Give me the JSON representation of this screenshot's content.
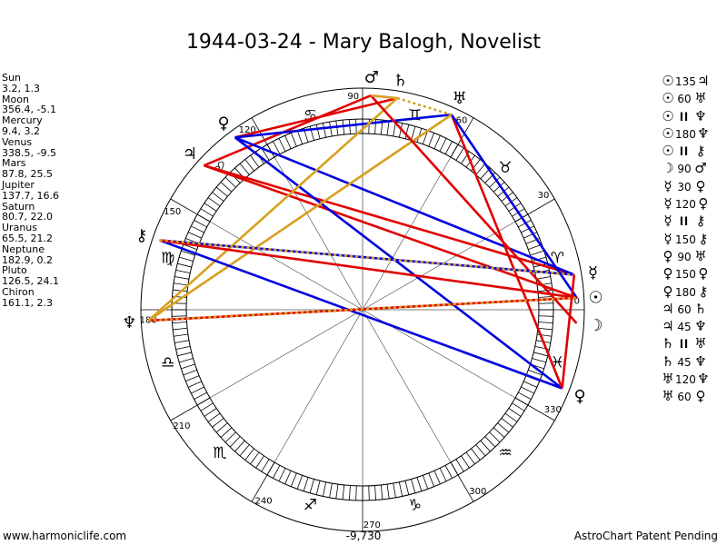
{
  "title": "1944-03-24 - Mary Balogh, Novelist",
  "planets": [
    {
      "name": "Sun",
      "glyph": "☉",
      "lon": 3.2,
      "lat": 1.3,
      "coords": "3.2, 1.3"
    },
    {
      "name": "Moon",
      "glyph": "☽",
      "lon": 356.4,
      "lat": -5.1,
      "coords": "356.4, -5.1"
    },
    {
      "name": "Mercury",
      "glyph": "☿",
      "lon": 9.4,
      "lat": 3.2,
      "coords": "9.4, 3.2"
    },
    {
      "name": "Venus",
      "glyph": "♀",
      "lon": 338.5,
      "lat": -9.5,
      "coords": "338.5, -9.5"
    },
    {
      "name": "Mars",
      "glyph": "♂",
      "lon": 87.8,
      "lat": 25.5,
      "coords": "87.8, 25.5"
    },
    {
      "name": "Jupiter",
      "glyph": "♃",
      "lon": 137.7,
      "lat": 16.6,
      "coords": "137.7, 16.6"
    },
    {
      "name": "Saturn",
      "glyph": "♄",
      "lon": 80.7,
      "lat": 22.0,
      "coords": "80.7, 22.0"
    },
    {
      "name": "Uranus",
      "glyph": "♅",
      "lon": 65.5,
      "lat": 21.2,
      "coords": "65.5, 21.2"
    },
    {
      "name": "Neptune",
      "glyph": "♆",
      "lon": 182.9,
      "lat": 0.2,
      "coords": "182.9, 0.2"
    },
    {
      "name": "Pluto",
      "glyph": "♀",
      "lon": 126.5,
      "lat": 24.1,
      "coords": "126.5, 24.1"
    },
    {
      "name": "Chiron",
      "glyph": "⚷",
      "lon": 161.1,
      "lat": 2.3,
      "coords": "161.1, 2.3"
    }
  ],
  "aspects": [
    {
      "p1": "Sun",
      "g1": "☉",
      "value": "135",
      "g2": "♃",
      "p2": "Jupiter"
    },
    {
      "p1": "Sun",
      "g1": "☉",
      "value": "60",
      "g2": "♅",
      "p2": "Uranus"
    },
    {
      "p1": "Sun",
      "g1": "☉",
      "value": "ll",
      "g2": "♆",
      "p2": "Neptune"
    },
    {
      "p1": "Sun",
      "g1": "☉",
      "value": "180",
      "g2": "♆",
      "p2": "Neptune"
    },
    {
      "p1": "Sun",
      "g1": "☉",
      "value": "ll",
      "g2": "⚷",
      "p2": "Chiron"
    },
    {
      "p1": "Moon",
      "g1": "☽",
      "value": "90",
      "g2": "♂",
      "p2": "Mars"
    },
    {
      "p1": "Mercury",
      "g1": "☿",
      "value": "30",
      "g2": "♀",
      "p2": "Venus"
    },
    {
      "p1": "Mercury",
      "g1": "☿",
      "value": "120",
      "g2": "♀",
      "p2": "Pluto"
    },
    {
      "p1": "Mercury",
      "g1": "☿",
      "value": "ll",
      "g2": "⚷",
      "p2": "Chiron"
    },
    {
      "p1": "Mercury",
      "g1": "☿",
      "value": "150",
      "g2": "⚷",
      "p2": "Chiron"
    },
    {
      "p1": "Venus",
      "g1": "♀",
      "value": "90",
      "g2": "♅",
      "p2": "Uranus"
    },
    {
      "p1": "Venus",
      "g1": "♀",
      "value": "150",
      "g2": "♀",
      "p2": "Pluto"
    },
    {
      "p1": "Venus",
      "g1": "♀",
      "value": "180",
      "g2": "⚷",
      "p2": "Chiron"
    },
    {
      "p1": "Jupiter",
      "g1": "♃",
      "value": "60",
      "g2": "♄",
      "p2": "Saturn"
    },
    {
      "p1": "Jupiter",
      "g1": "♃",
      "value": "45",
      "g2": "♆",
      "p2": "Neptune"
    },
    {
      "p1": "Saturn",
      "g1": "♄",
      "value": "ll",
      "g2": "♅",
      "p2": "Uranus"
    },
    {
      "p1": "Saturn",
      "g1": "♄",
      "value": "45",
      "g2": "♆",
      "p2": "Neptune"
    },
    {
      "p1": "Uranus",
      "g1": "♅",
      "value": "120",
      "g2": "♆",
      "p2": "Neptune"
    },
    {
      "p1": "Uranus",
      "g1": "♅",
      "value": "60",
      "g2": "♀",
      "p2": "Pluto"
    }
  ],
  "aspect_lines": [
    {
      "from": "Jupiter",
      "to": "Mars",
      "color": "#e00000",
      "dash": false
    },
    {
      "from": "Jupiter",
      "to": "Mercury",
      "color": "#e00000",
      "dash": false
    },
    {
      "from": "Jupiter",
      "to": "Sun",
      "color": "#e00000",
      "dash": false
    },
    {
      "from": "Pluto",
      "to": "Saturn",
      "color": "#e00000",
      "dash": false
    },
    {
      "from": "Pluto",
      "to": "Uranus",
      "color": "#0000e0",
      "dash": false
    },
    {
      "from": "Pluto",
      "to": "Mercury",
      "color": "#0000e0",
      "dash": false
    },
    {
      "from": "Pluto",
      "to": "Venus",
      "color": "#0000e0",
      "dash": false
    },
    {
      "from": "Uranus",
      "to": "Venus",
      "color": "#e00000",
      "dash": false
    },
    {
      "from": "Uranus",
      "to": "Sun",
      "color": "#0000e0",
      "dash": false
    },
    {
      "from": "Uranus",
      "to": "Neptune",
      "color": "#d8a020",
      "dash": false
    },
    {
      "from": "Saturn",
      "to": "Neptune",
      "color": "#d8a020",
      "dash": false
    },
    {
      "from": "Saturn",
      "to": "Uranus",
      "color": "#d8a020",
      "dash": true
    },
    {
      "from": "Mars",
      "to": "Moon",
      "color": "#e00000",
      "dash": false
    },
    {
      "from": "Chiron",
      "to": "Mercury",
      "color": "#0000e0",
      "dash": false
    },
    {
      "from": "Chiron",
      "to": "Venus",
      "color": "#0000e0",
      "dash": false
    },
    {
      "from": "Chiron",
      "to": "Sun",
      "color": "#e00000",
      "dash": false
    },
    {
      "from": "Chiron",
      "to": "Mercury",
      "color": "#d8a020",
      "dash": true
    },
    {
      "from": "Mercury",
      "to": "Venus",
      "color": "#e00000",
      "dash": false
    },
    {
      "from": "Neptune",
      "to": "Sun",
      "color": "#e00000",
      "dash": false
    },
    {
      "from": "Neptune",
      "to": "Sun",
      "color": "#d8a020",
      "dash": true
    },
    {
      "from": "Mars",
      "to": "Saturn",
      "color": "#d8a020",
      "dash": false
    }
  ],
  "degree_labels": [
    {
      "deg": 0,
      "text": "0"
    },
    {
      "deg": 30,
      "text": "30"
    },
    {
      "deg": 60,
      "text": "60"
    },
    {
      "deg": 90,
      "text": "90"
    },
    {
      "deg": 120,
      "text": "120"
    },
    {
      "deg": 150,
      "text": "150"
    },
    {
      "deg": 180,
      "text": "180"
    },
    {
      "deg": 210,
      "text": "210"
    },
    {
      "deg": 240,
      "text": "240"
    },
    {
      "deg": 270,
      "text": "270"
    },
    {
      "deg": 300,
      "text": "300"
    },
    {
      "deg": 330,
      "text": "330"
    }
  ],
  "zodiac_signs": [
    {
      "name": "aries",
      "glyph": "♈",
      "deg": 15
    },
    {
      "name": "taurus",
      "glyph": "♉",
      "deg": 45
    },
    {
      "name": "gemini",
      "glyph": "♊",
      "deg": 75
    },
    {
      "name": "cancer",
      "glyph": "♋",
      "deg": 105
    },
    {
      "name": "leo",
      "glyph": "♌",
      "deg": 135
    },
    {
      "name": "virgo",
      "glyph": "♍",
      "deg": 165
    },
    {
      "name": "libra",
      "glyph": "♎",
      "deg": 195
    },
    {
      "name": "scorpio",
      "glyph": "♏",
      "deg": 225
    },
    {
      "name": "sagittarius",
      "glyph": "♐",
      "deg": 255
    },
    {
      "name": "capricorn",
      "glyph": "♑",
      "deg": 285
    },
    {
      "name": "aquarius",
      "glyph": "♒",
      "deg": 315
    },
    {
      "name": "pisces",
      "glyph": "♓",
      "deg": 345
    }
  ],
  "colors": {
    "red": "#e00000",
    "blue": "#0000e0",
    "gold": "#d8a020"
  },
  "footer": {
    "website": "www.harmoniclife.com",
    "center_value": "-9,730",
    "patent": "AstroChart Patent Pending"
  }
}
